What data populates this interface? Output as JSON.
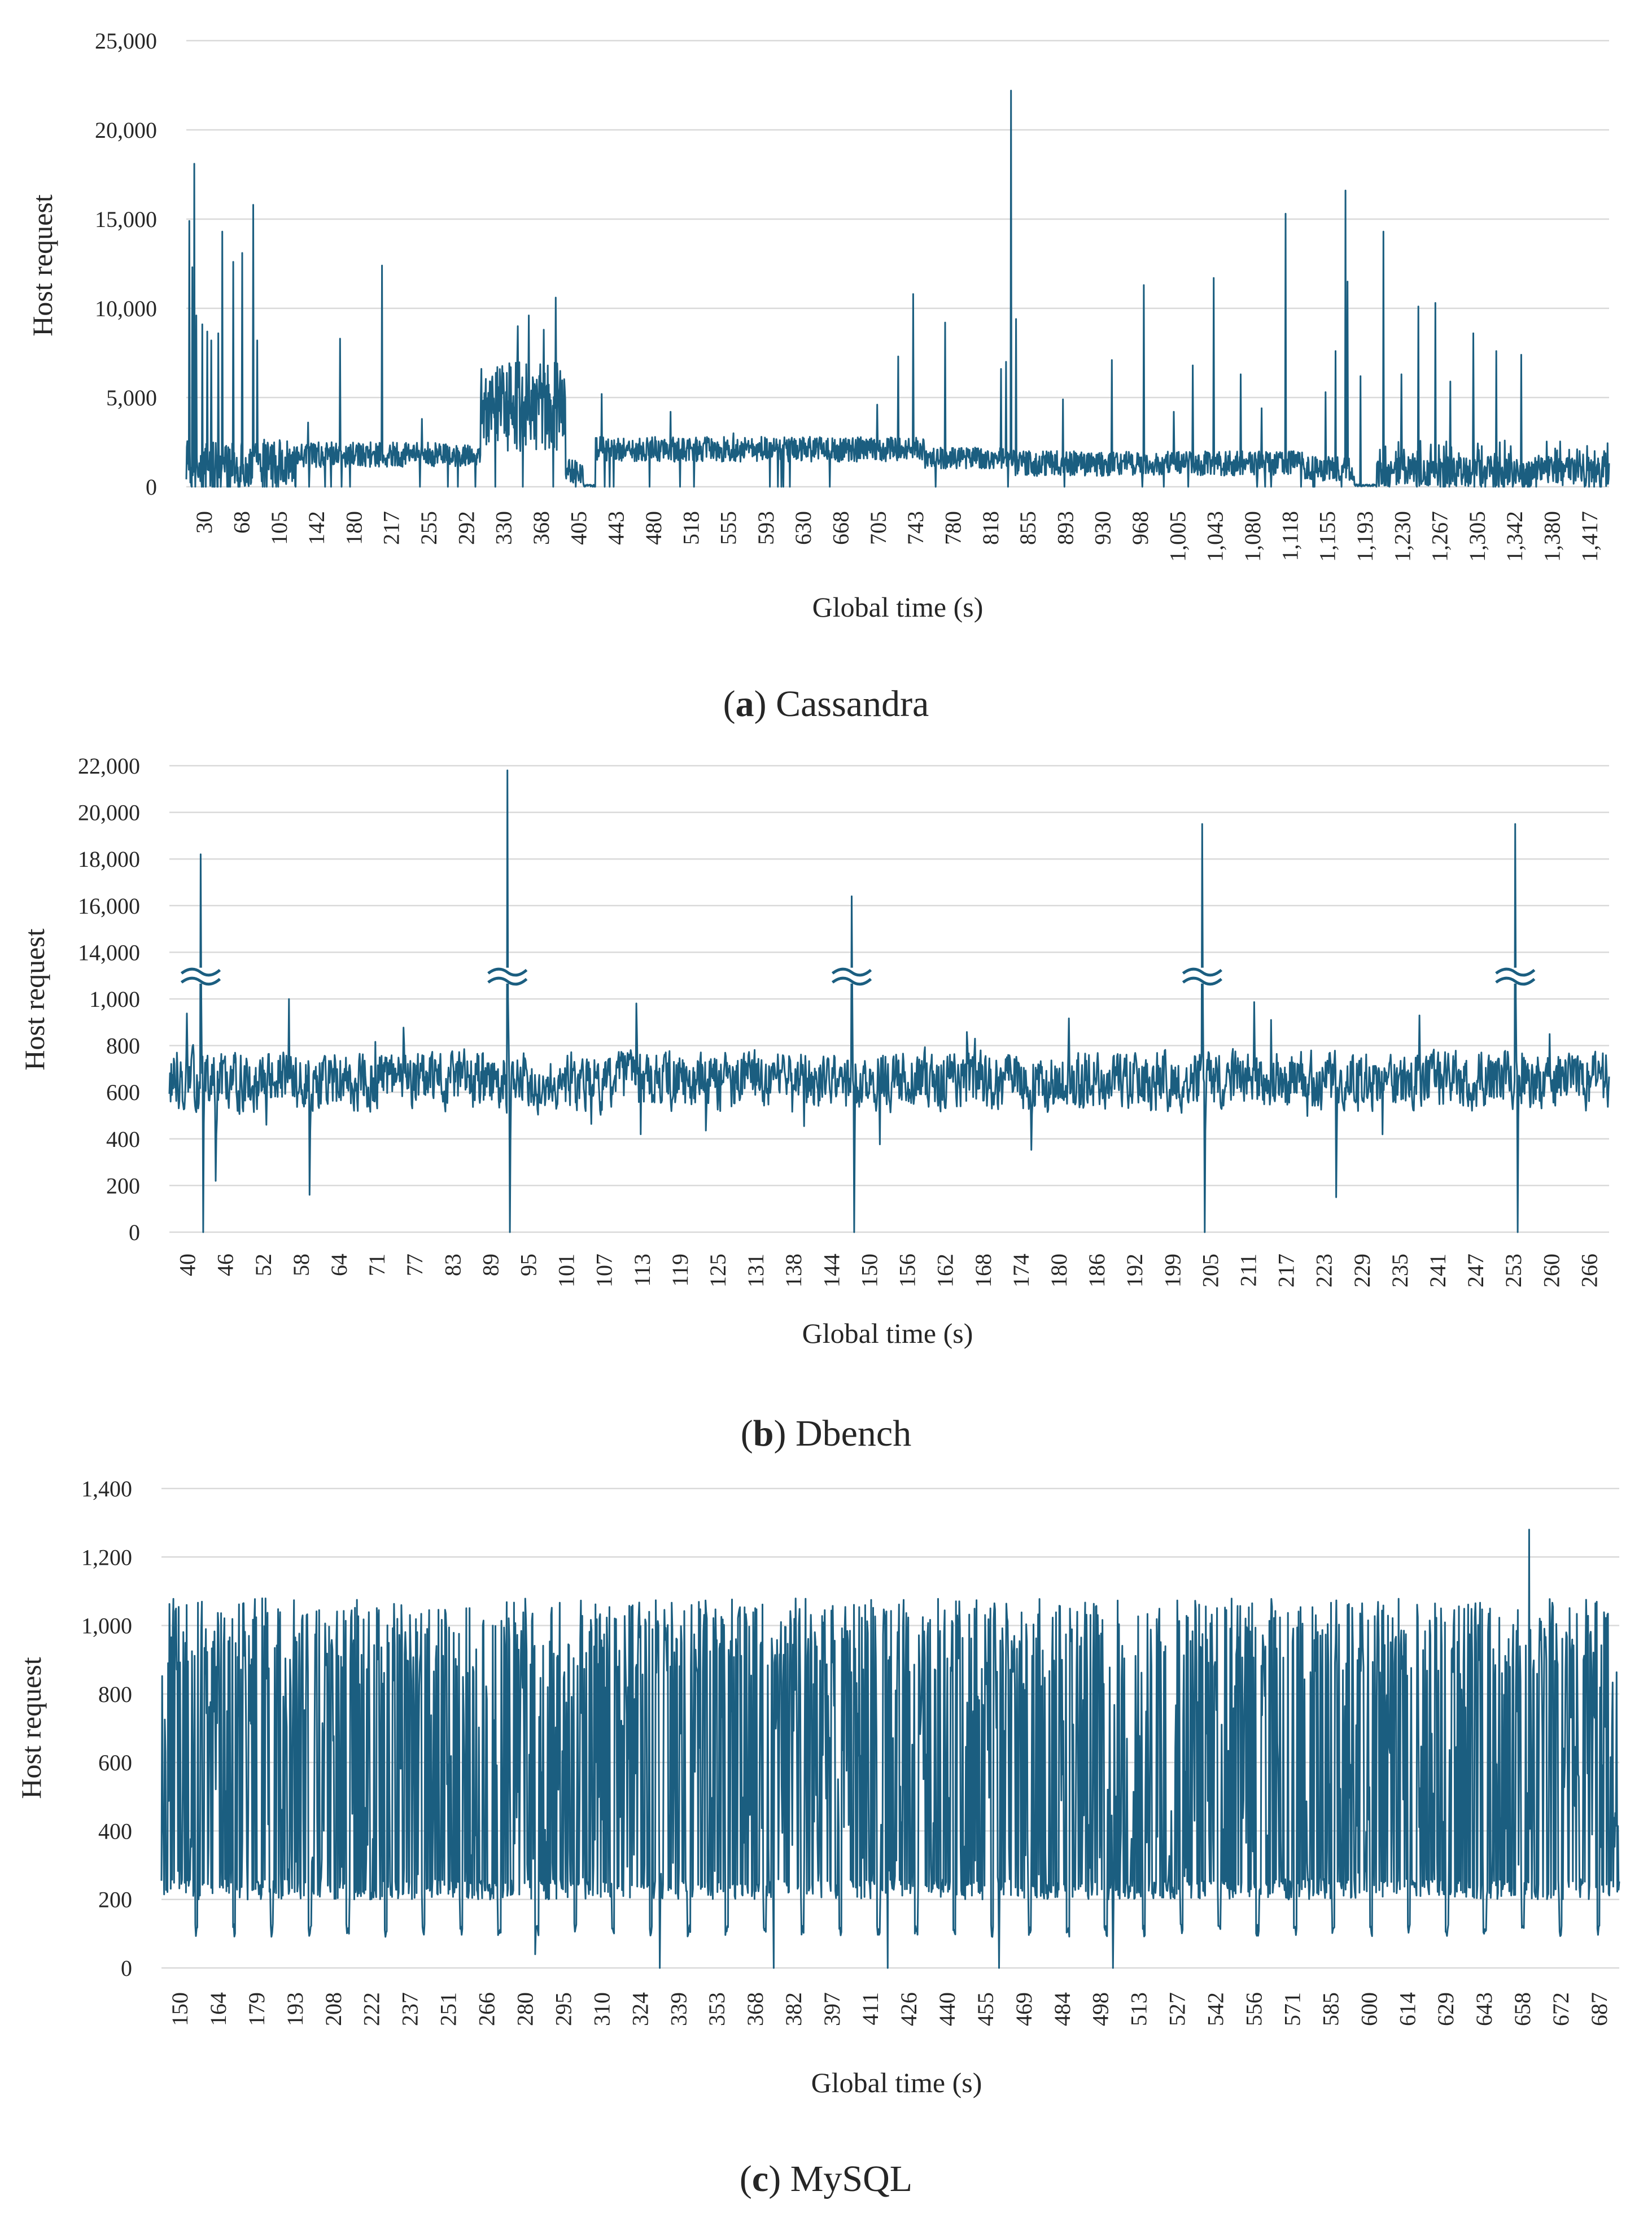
{
  "colors": {
    "series": "#1b5e80",
    "grid": "#d9d9d9",
    "text": "#262626"
  },
  "chart_data": [
    {
      "id": "cassandra",
      "type": "line",
      "caption_letter": "a",
      "caption_text": "Cassandra",
      "xlabel": "Global time (s)",
      "ylabel": "Host request",
      "ylim": [
        0,
        25000
      ],
      "yticks": [
        "0",
        "5,000",
        "10,000",
        "15,000",
        "20,000",
        "25,000"
      ],
      "ytick_values": [
        0,
        5000,
        10000,
        15000,
        20000,
        25000
      ],
      "xlim": [
        30,
        1455
      ],
      "xticks": [
        "30",
        "68",
        "105",
        "142",
        "180",
        "217",
        "255",
        "292",
        "330",
        "368",
        "405",
        "443",
        "480",
        "518",
        "555",
        "593",
        "630",
        "668",
        "705",
        "743",
        "780",
        "818",
        "855",
        "893",
        "930",
        "968",
        "1,005",
        "1,043",
        "1,080",
        "1,118",
        "1,155",
        "1,193",
        "1,230",
        "1,267",
        "1,305",
        "1,342",
        "1,380",
        "1,417"
      ],
      "segments": [
        {
          "from": 30,
          "to": 140,
          "base": 1200,
          "noise": 1500,
          "bursty": true
        },
        {
          "from": 140,
          "to": 325,
          "base": 1800,
          "noise": 700
        },
        {
          "from": 325,
          "to": 410,
          "base": 4200,
          "noise": 2200,
          "dense": true
        },
        {
          "from": 410,
          "to": 428,
          "base": 900,
          "noise": 700
        },
        {
          "from": 428,
          "to": 440,
          "base": 60,
          "noise": 60
        },
        {
          "from": 440,
          "to": 770,
          "base": 2100,
          "noise": 700
        },
        {
          "from": 770,
          "to": 860,
          "base": 1600,
          "noise": 600
        },
        {
          "from": 860,
          "to": 1150,
          "base": 1300,
          "noise": 700
        },
        {
          "from": 1150,
          "to": 1200,
          "base": 1000,
          "noise": 700
        },
        {
          "from": 1200,
          "to": 1222,
          "base": 80,
          "noise": 60
        },
        {
          "from": 1222,
          "to": 1455,
          "base": 800,
          "noise": 900,
          "bursty": true
        }
      ],
      "spikes": [
        {
          "x": 33,
          "y": 14900
        },
        {
          "x": 36,
          "y": 12300
        },
        {
          "x": 38,
          "y": 18100
        },
        {
          "x": 40,
          "y": 9600
        },
        {
          "x": 46,
          "y": 9100
        },
        {
          "x": 51,
          "y": 8700
        },
        {
          "x": 55,
          "y": 8200
        },
        {
          "x": 62,
          "y": 8600
        },
        {
          "x": 66,
          "y": 14300
        },
        {
          "x": 77,
          "y": 12600
        },
        {
          "x": 86,
          "y": 13100
        },
        {
          "x": 97,
          "y": 15800
        },
        {
          "x": 101,
          "y": 8200
        },
        {
          "x": 152,
          "y": 3600
        },
        {
          "x": 184,
          "y": 8300
        },
        {
          "x": 226,
          "y": 12400
        },
        {
          "x": 266,
          "y": 3800
        },
        {
          "x": 362,
          "y": 9000
        },
        {
          "x": 373,
          "y": 9600
        },
        {
          "x": 388,
          "y": 8800
        },
        {
          "x": 400,
          "y": 10600
        },
        {
          "x": 446,
          "y": 5200
        },
        {
          "x": 515,
          "y": 4200
        },
        {
          "x": 578,
          "y": 3000
        },
        {
          "x": 722,
          "y": 4600
        },
        {
          "x": 743,
          "y": 7300
        },
        {
          "x": 758,
          "y": 10800
        },
        {
          "x": 790,
          "y": 9200
        },
        {
          "x": 846,
          "y": 6600
        },
        {
          "x": 851,
          "y": 7000
        },
        {
          "x": 856,
          "y": 22200
        },
        {
          "x": 861,
          "y": 9400
        },
        {
          "x": 908,
          "y": 4900
        },
        {
          "x": 957,
          "y": 7100
        },
        {
          "x": 989,
          "y": 11300
        },
        {
          "x": 1019,
          "y": 4200
        },
        {
          "x": 1038,
          "y": 6800
        },
        {
          "x": 1059,
          "y": 11700
        },
        {
          "x": 1086,
          "y": 6300
        },
        {
          "x": 1107,
          "y": 4400
        },
        {
          "x": 1131,
          "y": 15300
        },
        {
          "x": 1171,
          "y": 5300
        },
        {
          "x": 1181,
          "y": 7600
        },
        {
          "x": 1191,
          "y": 16600
        },
        {
          "x": 1193,
          "y": 11500
        },
        {
          "x": 1206,
          "y": 6200
        },
        {
          "x": 1229,
          "y": 14300
        },
        {
          "x": 1247,
          "y": 6300
        },
        {
          "x": 1264,
          "y": 10100
        },
        {
          "x": 1281,
          "y": 10300
        },
        {
          "x": 1296,
          "y": 5900
        },
        {
          "x": 1319,
          "y": 8600
        },
        {
          "x": 1342,
          "y": 7600
        },
        {
          "x": 1367,
          "y": 7400
        }
      ]
    },
    {
      "id": "dbench",
      "type": "line",
      "caption_letter": "b",
      "caption_text": "Dbench",
      "xlabel": "Global time (s)",
      "ylabel": "Host request",
      "axis_break": {
        "between": [
          "1,000",
          "14,000"
        ]
      },
      "yticks": [
        "0",
        "200",
        "400",
        "600",
        "800",
        "1,000",
        "14,000",
        "16,000",
        "18,000",
        "20,000",
        "22,000"
      ],
      "ytick_values": [
        0,
        200,
        400,
        600,
        800,
        1000,
        14000,
        16000,
        18000,
        20000,
        22000
      ],
      "xlim": [
        40,
        270
      ],
      "xticks": [
        "40",
        "46",
        "52",
        "58",
        "64",
        "71",
        "77",
        "83",
        "89",
        "95",
        "101",
        "107",
        "113",
        "119",
        "125",
        "131",
        "138",
        "144",
        "150",
        "156",
        "162",
        "168",
        "174",
        "180",
        "186",
        "192",
        "199",
        "205",
        "211",
        "217",
        "223",
        "229",
        "235",
        "241",
        "247",
        "253",
        "260",
        "266"
      ],
      "base": 650,
      "noise": 110,
      "spikes": [
        {
          "x": 45,
          "y": 18200
        },
        {
          "x": 94,
          "y": 21800
        },
        {
          "x": 149,
          "y": 16400
        },
        {
          "x": 205,
          "y": 19500
        },
        {
          "x": 255,
          "y": 19500
        }
      ],
      "drops": [
        {
          "x": 45,
          "y": 0
        },
        {
          "x": 94,
          "y": 0
        },
        {
          "x": 149,
          "y": 0
        },
        {
          "x": 205,
          "y": 0
        },
        {
          "x": 255,
          "y": 0
        },
        {
          "x": 62,
          "y": 160
        },
        {
          "x": 47,
          "y": 220
        },
        {
          "x": 226,
          "y": 150
        }
      ]
    },
    {
      "id": "mysql",
      "type": "line",
      "caption_letter": "c",
      "caption_text": "MySQL",
      "xlabel": "Global time (s)",
      "ylabel": "Host request",
      "ylim": [
        0,
        1400
      ],
      "yticks": [
        "0",
        "200",
        "400",
        "600",
        "800",
        "1,000",
        "1,200",
        "1,400"
      ],
      "ytick_values": [
        0,
        200,
        400,
        600,
        800,
        1000,
        1200,
        1400
      ],
      "xlim": [
        150,
        700
      ],
      "xticks": [
        "150",
        "164",
        "179",
        "193",
        "208",
        "222",
        "237",
        "251",
        "266",
        "280",
        "295",
        "310",
        "324",
        "339",
        "353",
        "368",
        "382",
        "397",
        "411",
        "426",
        "440",
        "455",
        "469",
        "484",
        "498",
        "513",
        "527",
        "542",
        "556",
        "571",
        "585",
        "600",
        "614",
        "629",
        "643",
        "658",
        "672",
        "687"
      ],
      "low": 200,
      "high": 1080,
      "spikes": [
        {
          "x": 666,
          "y": 1280
        }
      ],
      "drops": [
        {
          "x": 338,
          "y": 0
        },
        {
          "x": 381,
          "y": 0
        },
        {
          "x": 424,
          "y": 0
        },
        {
          "x": 466,
          "y": 0
        },
        {
          "x": 509,
          "y": 0
        },
        {
          "x": 291,
          "y": 40
        }
      ]
    }
  ]
}
